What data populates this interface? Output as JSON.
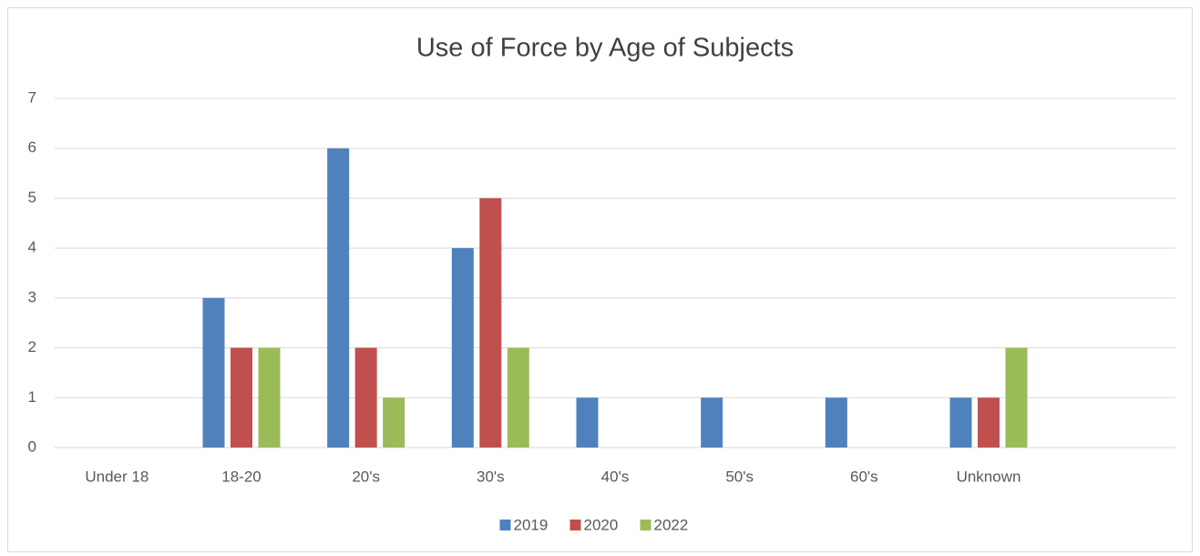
{
  "chart_data": {
    "type": "bar",
    "title": "Use of Force by Age of Subjects",
    "categories": [
      "Under 18",
      "18-20",
      "20's",
      "30's",
      "40's",
      "50's",
      "60's",
      "Unknown",
      null
    ],
    "series": [
      {
        "name": "2019",
        "color": "#4f81bd",
        "values": [
          0,
          3,
          6,
          4,
          1,
          1,
          1,
          1,
          null
        ]
      },
      {
        "name": "2020",
        "color": "#c0504d",
        "values": [
          0,
          2,
          2,
          5,
          0,
          0,
          0,
          1,
          null
        ]
      },
      {
        "name": "2022",
        "color": "#9bbb59",
        "values": [
          0,
          2,
          1,
          2,
          0,
          0,
          0,
          2,
          null
        ]
      }
    ],
    "ylim": [
      0,
      7
    ],
    "yticks": [
      0,
      1,
      2,
      3,
      4,
      5,
      6,
      7
    ],
    "grid": true,
    "legend": "bottom"
  }
}
